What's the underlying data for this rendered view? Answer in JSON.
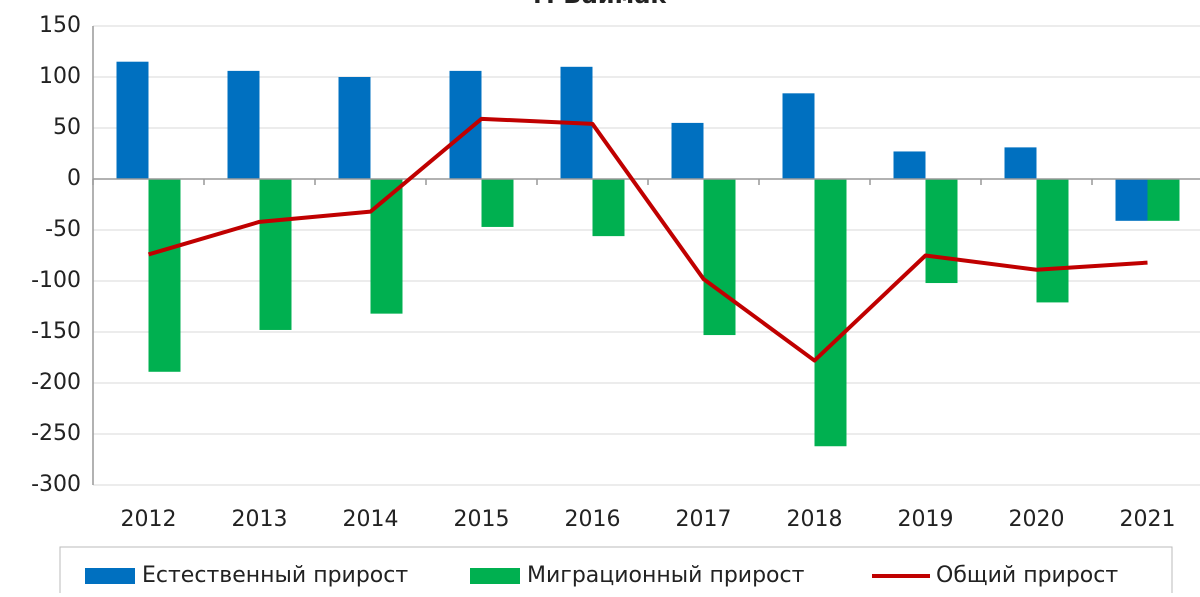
{
  "chart_data": {
    "type": "bar_line",
    "title": "г. Баймак",
    "categories": [
      "2012",
      "2013",
      "2014",
      "2015",
      "2016",
      "2017",
      "2018",
      "2019",
      "2020",
      "2021"
    ],
    "series": [
      {
        "name": "Естественный прирост",
        "type": "bar",
        "color": "#0070c0",
        "values": [
          115,
          106,
          100,
          106,
          110,
          55,
          84,
          27,
          31,
          -41
        ]
      },
      {
        "name": "Миграционный прирост",
        "type": "bar",
        "color": "#00b050",
        "values": [
          -189,
          -148,
          -132,
          -47,
          -56,
          -153,
          -262,
          -102,
          -121,
          -41
        ]
      },
      {
        "name": "Общий прирост",
        "type": "line",
        "color": "#c00000",
        "values": [
          -74,
          -42,
          -32,
          59,
          54,
          -98,
          -178,
          -75,
          -89,
          -82
        ]
      }
    ],
    "ylim": [
      -300,
      150
    ],
    "yticks": [
      150,
      100,
      50,
      0,
      -50,
      -100,
      -150,
      -200,
      -250,
      -300
    ],
    "grid": true,
    "legend": "bottom"
  }
}
